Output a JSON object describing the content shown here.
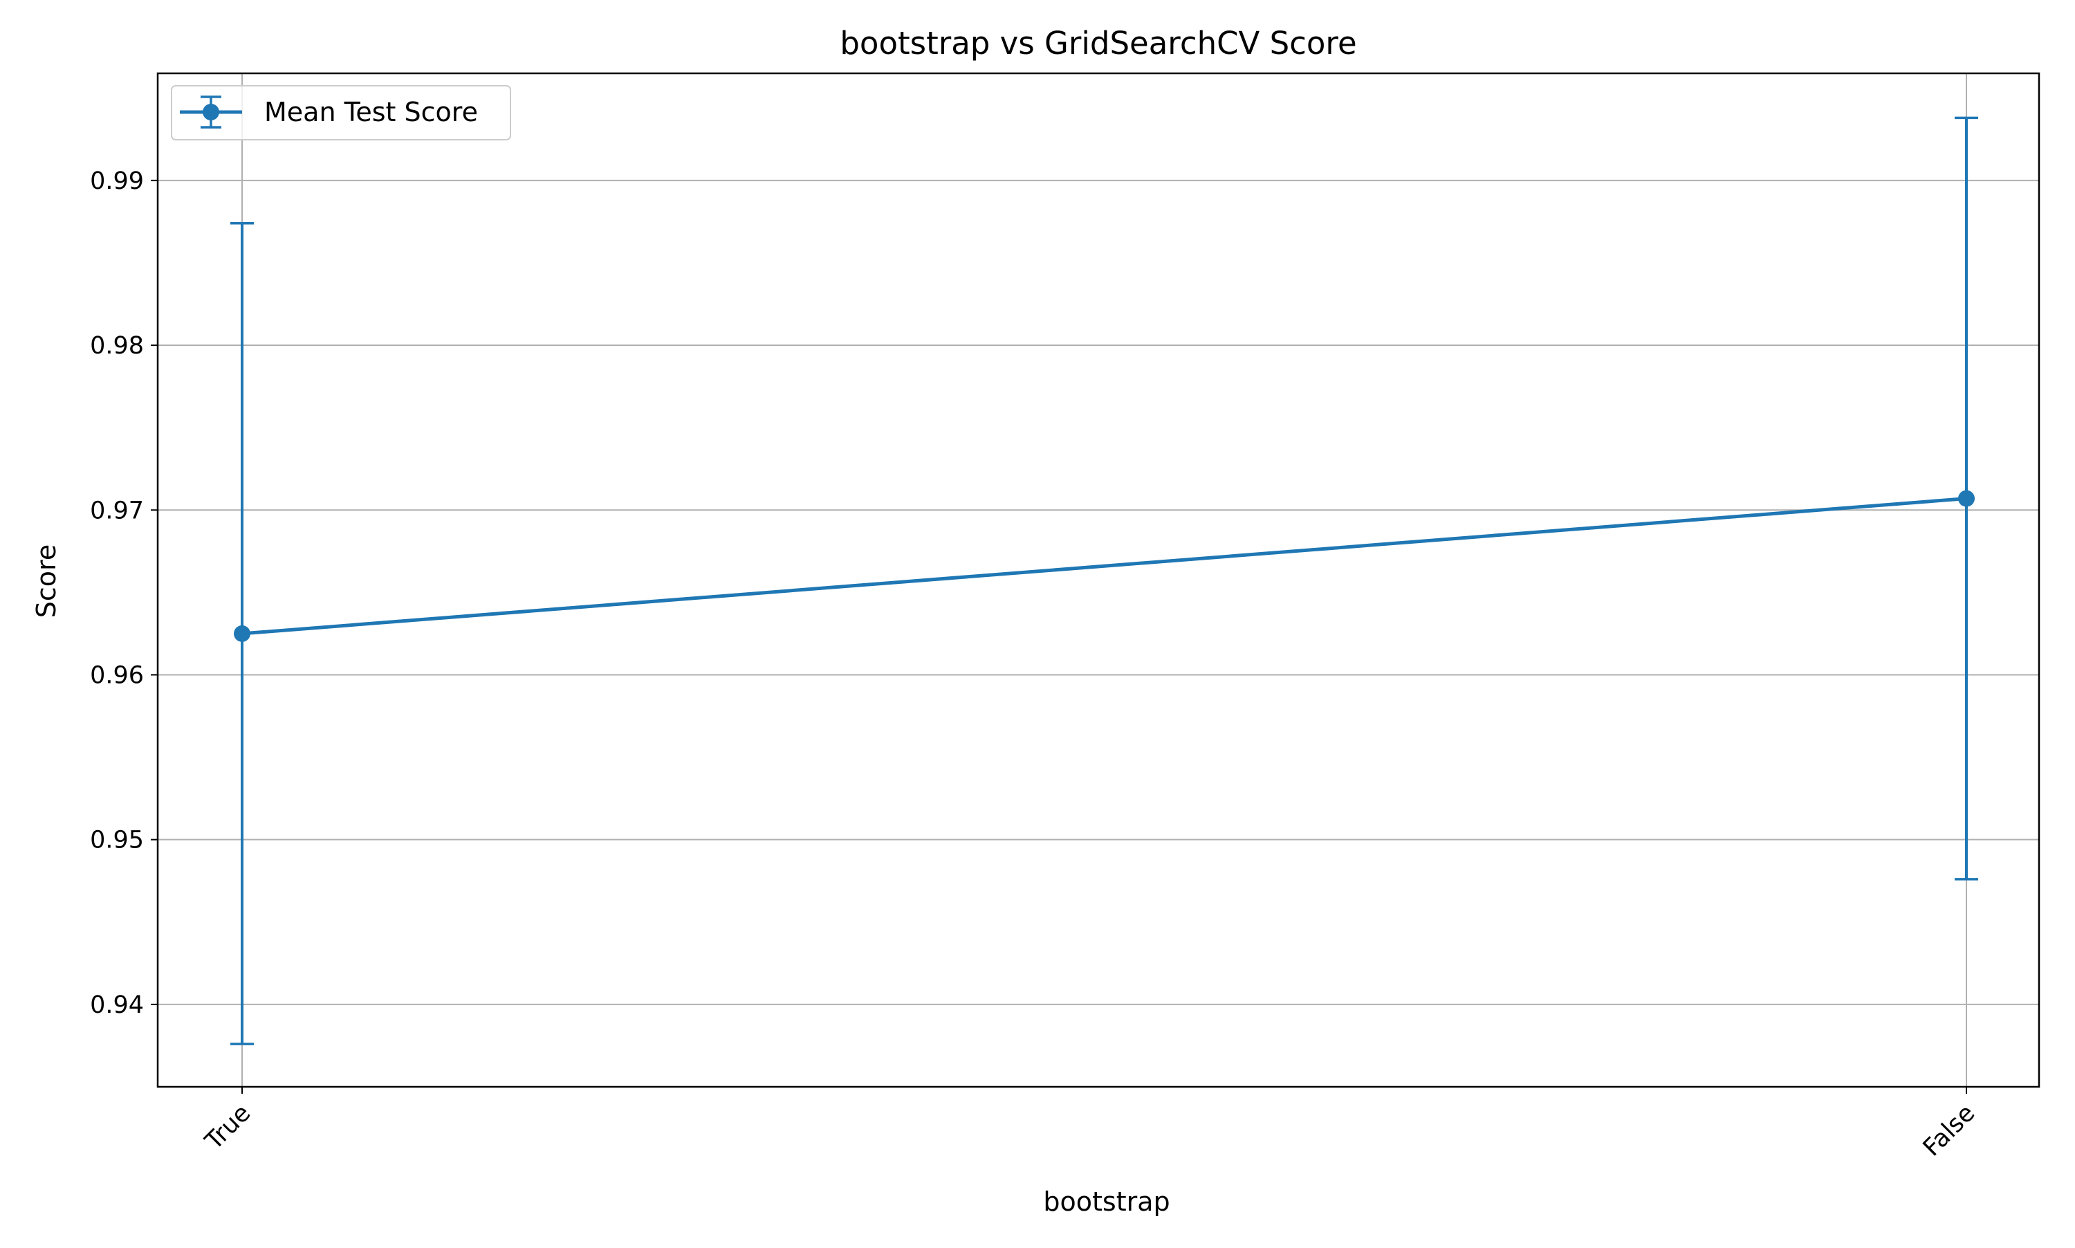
{
  "chart_data": {
    "type": "line",
    "title": "bootstrap vs GridSearchCV Score",
    "xlabel": "bootstrap",
    "ylabel": "Score",
    "categories": [
      "True",
      "False"
    ],
    "series": [
      {
        "name": "Mean Test Score",
        "values": [
          0.9625,
          0.9707
        ],
        "error": [
          0.0249,
          0.0231
        ]
      }
    ],
    "ylim": [
      0.935,
      0.9965
    ],
    "yticks": [
      0.94,
      0.95,
      0.96,
      0.97,
      0.98,
      0.99
    ],
    "ytick_labels": [
      "0.94",
      "0.95",
      "0.96",
      "0.97",
      "0.98",
      "0.99"
    ],
    "grid": true,
    "legend_position": "upper left",
    "x_tick_rotation": 45,
    "colors": {
      "series": "#1f77b4",
      "grid": "#b0b0b0",
      "axes": "#000000"
    },
    "marker": "circle"
  }
}
